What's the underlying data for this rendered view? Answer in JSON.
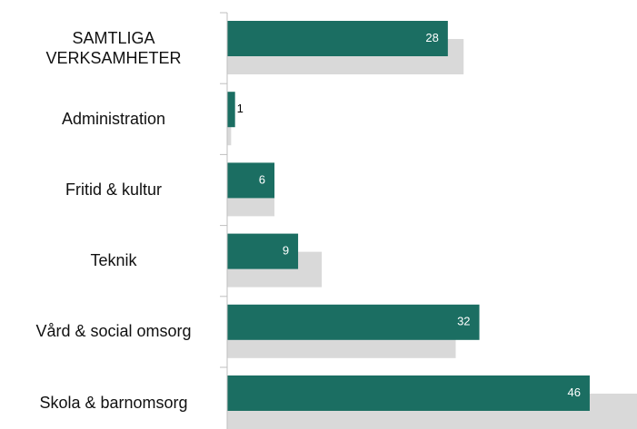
{
  "chart_data": {
    "type": "bar",
    "orientation": "horizontal",
    "categories": [
      "SAMTLIGA VERKSAMHETER",
      "Administration",
      "Fritid & kultur",
      "Teknik",
      "Vård & social omsorg",
      "Skola & barnomsorg"
    ],
    "series": [
      {
        "color": "#1b6e62",
        "values": [
          28,
          1,
          6,
          9,
          32,
          46
        ]
      },
      {
        "color": "#d9d9d9",
        "values": [
          30,
          0.5,
          6,
          12,
          29,
          52
        ]
      }
    ],
    "xlim": [
      0,
      52
    ]
  }
}
